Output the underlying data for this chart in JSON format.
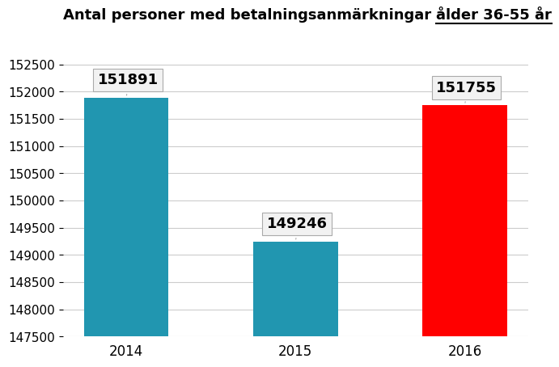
{
  "title_prefix": "Antal personer med betalningsanmärkningar ",
  "title_suffix": "ålder 36-55 år",
  "categories": [
    "2014",
    "2015",
    "2016"
  ],
  "values": [
    151891,
    149246,
    151755
  ],
  "bar_colors": [
    "#2196B0",
    "#2196B0",
    "#FF0000"
  ],
  "ylim": [
    147500,
    152750
  ],
  "yticks": [
    147500,
    148000,
    148500,
    149000,
    149500,
    150000,
    150500,
    151000,
    151500,
    152000,
    152500
  ],
  "background_color": "#ffffff",
  "plot_bg_color": "#ffffff",
  "grid_color": "#cccccc",
  "label_fontsize": 13,
  "title_fontsize": 13,
  "tick_fontsize": 11,
  "xtick_fontsize": 12
}
